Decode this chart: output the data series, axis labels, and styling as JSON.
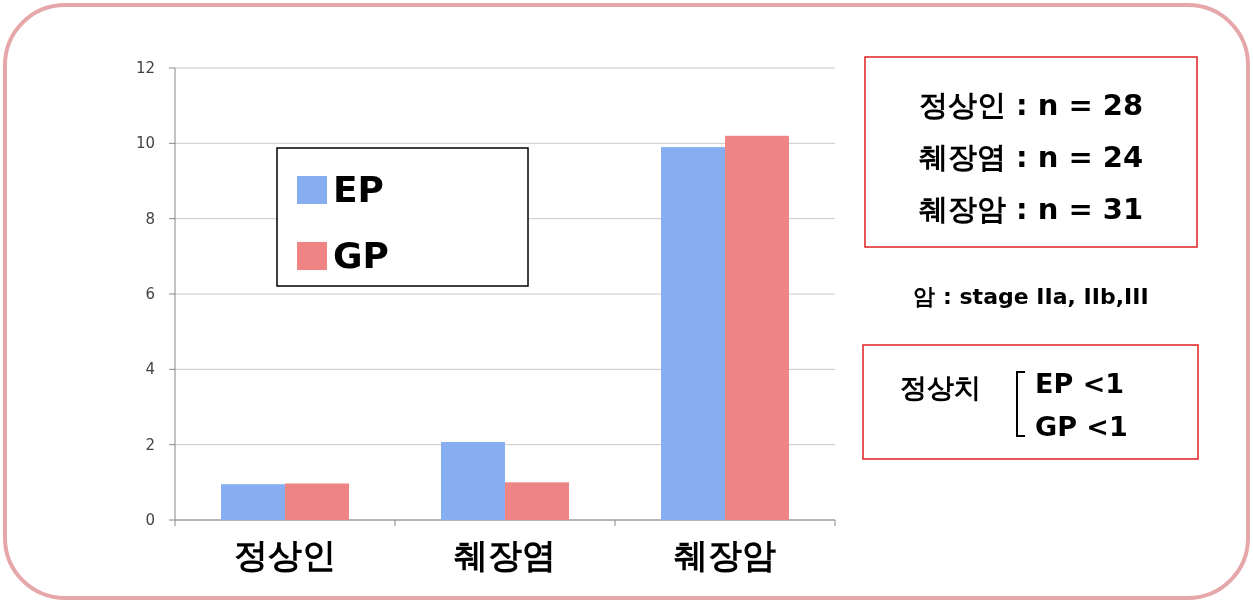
{
  "chart_data": {
    "type": "bar",
    "categories": [
      "정상인",
      "췌장염",
      "췌장암"
    ],
    "series": [
      {
        "name": "EP",
        "color": "#86aef0",
        "values": [
          0.95,
          2.07,
          9.9
        ]
      },
      {
        "name": "GP",
        "color": "#ee8484",
        "values": [
          0.97,
          1.0,
          10.2
        ]
      }
    ],
    "ylim": [
      0,
      12
    ],
    "yticks": [
      0,
      2,
      4,
      6,
      8,
      10,
      12
    ],
    "grid": "y",
    "legend": "top left",
    "annotations": [
      "정상인 : n = 28",
      "췌장염 : n = 24",
      "췌장암 : n = 31",
      "암 : stage IIa, IIb,III",
      "정상치",
      "EP <1",
      "GP <1"
    ]
  }
}
